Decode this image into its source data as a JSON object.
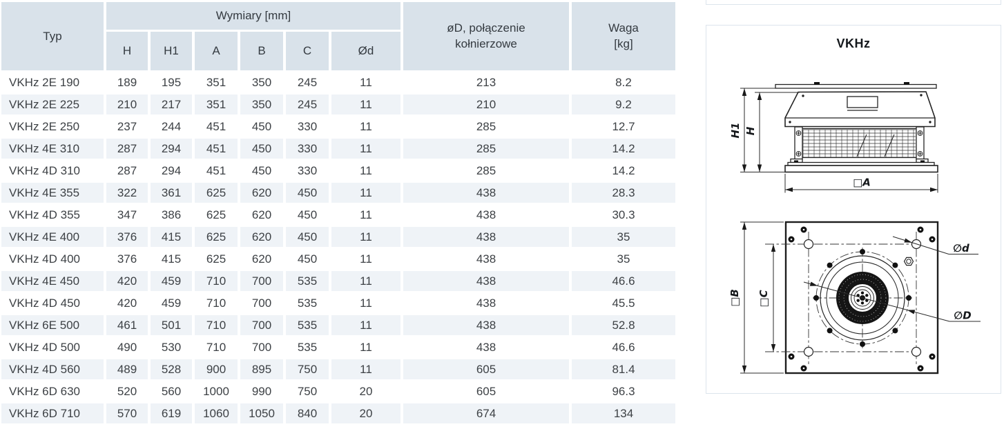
{
  "colors": {
    "header_bg": "#d9e2ea",
    "row_alt_bg": "#eff3f7",
    "panel_border": "#dce4ec"
  },
  "table": {
    "headers": {
      "typ": "Typ",
      "dimensions_group": "Wymiary [mm]",
      "dims": [
        "H",
        "H1",
        "A",
        "B",
        "C",
        "Ød"
      ],
      "flange": "øD, połączenie\nkołnierzowe",
      "weight": "Waga\n[kg]"
    },
    "rows": [
      [
        "VKHz 2E 190",
        "189",
        "195",
        "351",
        "350",
        "245",
        "11",
        "213",
        "8.2"
      ],
      [
        "VKHz 2E 225",
        "210",
        "217",
        "351",
        "350",
        "245",
        "11",
        "210",
        "9.2"
      ],
      [
        "VKHz 2E 250",
        "237",
        "244",
        "451",
        "450",
        "330",
        "11",
        "285",
        "12.7"
      ],
      [
        "VKHz 4E 310",
        "287",
        "294",
        "451",
        "450",
        "330",
        "11",
        "285",
        "14.2"
      ],
      [
        "VKHz 4D 310",
        "287",
        "294",
        "451",
        "450",
        "330",
        "11",
        "285",
        "14.2"
      ],
      [
        "VKHz 4E 355",
        "322",
        "361",
        "625",
        "620",
        "450",
        "11",
        "438",
        "28.3"
      ],
      [
        "VKHz 4D 355",
        "347",
        "386",
        "625",
        "620",
        "450",
        "11",
        "438",
        "30.3"
      ],
      [
        "VKHz 4E 400",
        "376",
        "415",
        "625",
        "620",
        "450",
        "11",
        "438",
        "35"
      ],
      [
        "VKHz 4D 400",
        "376",
        "415",
        "625",
        "620",
        "450",
        "11",
        "438",
        "35"
      ],
      [
        "VKHz 4E 450",
        "420",
        "459",
        "710",
        "700",
        "535",
        "11",
        "438",
        "46.6"
      ],
      [
        "VKHz 4D 450",
        "420",
        "459",
        "710",
        "700",
        "535",
        "11",
        "438",
        "45.5"
      ],
      [
        "VKHz 6E 500",
        "461",
        "501",
        "710",
        "700",
        "535",
        "11",
        "438",
        "52.8"
      ],
      [
        "VKHz 4D 500",
        "490",
        "530",
        "710",
        "700",
        "535",
        "11",
        "438",
        "46.6"
      ],
      [
        "VKHz 4D 560",
        "489",
        "528",
        "900",
        "895",
        "750",
        "11",
        "605",
        "81.4"
      ],
      [
        "VKHz 6D 630",
        "520",
        "560",
        "1000",
        "990",
        "750",
        "20",
        "605",
        "96.3"
      ],
      [
        "VKHz 6D 710",
        "570",
        "619",
        "1060",
        "1050",
        "840",
        "20",
        "674",
        "134"
      ]
    ]
  },
  "diagram": {
    "title": "VKHz",
    "labels": {
      "h1": "H1",
      "h": "H",
      "a": "□A",
      "b": "□B",
      "c": "□C",
      "d_small": "∅d",
      "d_big": "∅D"
    }
  }
}
